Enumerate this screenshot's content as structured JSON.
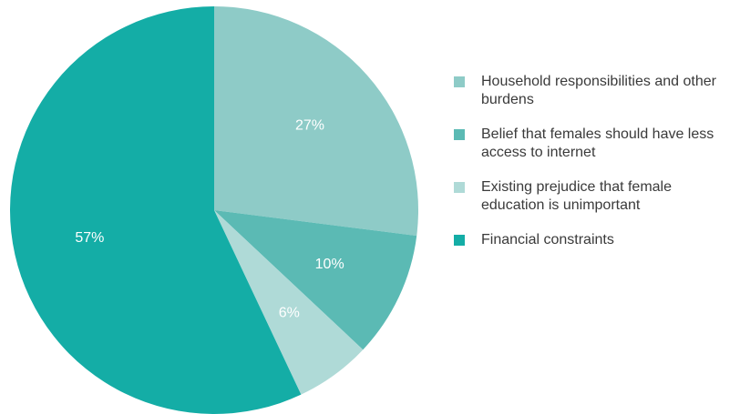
{
  "chart_data": {
    "type": "pie",
    "categories": [
      "Household responsibilities and other burdens",
      "Belief that females should have less access to internet",
      "Existing prejudice that female education is unimportant",
      "Financial constraints"
    ],
    "values": [
      27,
      10,
      6,
      57
    ],
    "labels": [
      "27%",
      "10%",
      "6%",
      "57%"
    ],
    "colors": [
      "#8ecbc7",
      "#5bbab4",
      "#afdad7",
      "#14ada6"
    ],
    "legend_position": "right",
    "legend": [
      "Household responsibilities and other burdens",
      "Belief that females should have less access to internet",
      "Existing prejudice that female education is unimportant",
      "Financial constraints"
    ]
  }
}
